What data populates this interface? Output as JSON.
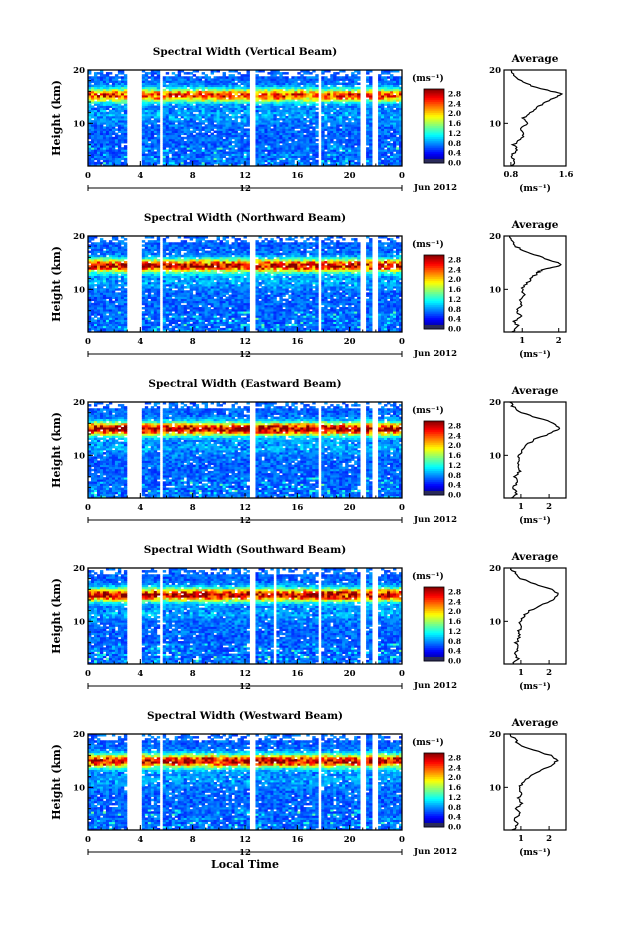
{
  "chart_data": [
    {
      "type": "heatmap",
      "title": "Spectral Width (Vertical Beam)",
      "ylabel": "Height (km)",
      "ylim": [
        2,
        20
      ],
      "y_ticks": [
        "20",
        "10"
      ],
      "x_ticks": [
        "0",
        "4",
        "8",
        "12",
        "16",
        "20",
        "0"
      ],
      "xlim": [
        0,
        24
      ],
      "date_label": "12",
      "date_suffix": "Jun 2012",
      "colorbar": {
        "unit": "(ms⁻¹)",
        "labels": [
          "2.8",
          "2.4",
          "2.0",
          "1.6",
          "1.2",
          "0.8",
          "0.4",
          "0.0"
        ],
        "range": [
          0,
          2.8
        ]
      },
      "gaps": [
        [
          3.0,
          4.0
        ],
        [
          5.5,
          5.8
        ],
        [
          12.4,
          12.8
        ],
        [
          17.6,
          17.9
        ],
        [
          20.9,
          21.2
        ],
        [
          21.8,
          22.1
        ]
      ],
      "core_height": 15.3,
      "core_level": 2.2,
      "average": {
        "title": "Average",
        "xlabel": "(ms⁻¹)",
        "xlim": [
          0.7,
          1.6
        ],
        "x_ticks": [
          {
            "v": 0.8,
            "label": "0.8"
          },
          {
            "v": 1.6,
            "label": "1.6"
          }
        ],
        "y_ticks": [
          "20",
          "10"
        ],
        "profile": [
          {
            "h": 2,
            "w": 0.8
          },
          {
            "h": 3,
            "w": 0.86
          },
          {
            "h": 4,
            "w": 0.81
          },
          {
            "h": 5,
            "w": 0.9
          },
          {
            "h": 6,
            "w": 0.84
          },
          {
            "h": 7,
            "w": 0.93
          },
          {
            "h": 8,
            "w": 1.0
          },
          {
            "h": 9,
            "w": 0.95
          },
          {
            "h": 10,
            "w": 1.05
          },
          {
            "h": 11,
            "w": 0.98
          },
          {
            "h": 12,
            "w": 1.08
          },
          {
            "h": 13,
            "w": 1.18
          },
          {
            "h": 14,
            "w": 1.3
          },
          {
            "h": 15,
            "w": 1.48
          },
          {
            "h": 15.5,
            "w": 1.55
          },
          {
            "h": 16,
            "w": 1.4
          },
          {
            "h": 17,
            "w": 1.1
          },
          {
            "h": 18,
            "w": 0.95
          },
          {
            "h": 19,
            "w": 0.86
          },
          {
            "h": 20,
            "w": 0.8
          }
        ]
      }
    },
    {
      "type": "heatmap",
      "title": "Spectral Width (Northward Beam)",
      "ylabel": "Height (km)",
      "ylim": [
        2,
        20
      ],
      "y_ticks": [
        "20",
        "10"
      ],
      "x_ticks": [
        "0",
        "4",
        "8",
        "12",
        "16",
        "20",
        "0"
      ],
      "xlim": [
        0,
        24
      ],
      "date_label": "12",
      "date_suffix": "Jun 2012",
      "colorbar": {
        "unit": "(ms⁻¹)",
        "labels": [
          "2.8",
          "2.4",
          "2.0",
          "1.6",
          "1.2",
          "0.8",
          "0.4",
          "0.0"
        ],
        "range": [
          0,
          2.8
        ]
      },
      "gaps": [
        [
          3.0,
          4.0
        ],
        [
          5.5,
          5.8
        ],
        [
          12.4,
          12.8
        ],
        [
          17.6,
          17.9
        ],
        [
          20.9,
          21.2
        ],
        [
          21.8,
          22.1
        ]
      ],
      "core_height": 14.5,
      "core_level": 2.5,
      "average": {
        "title": "Average",
        "xlabel": "(ms⁻¹)",
        "xlim": [
          0.5,
          2.2
        ],
        "x_ticks": [
          {
            "v": 1.0,
            "label": "1"
          },
          {
            "v": 2.0,
            "label": "2"
          }
        ],
        "y_ticks": [
          "20",
          "10"
        ],
        "profile": [
          {
            "h": 2,
            "w": 0.75
          },
          {
            "h": 3,
            "w": 0.9
          },
          {
            "h": 4,
            "w": 0.78
          },
          {
            "h": 5,
            "w": 0.95
          },
          {
            "h": 6,
            "w": 0.85
          },
          {
            "h": 7,
            "w": 1.0
          },
          {
            "h": 8,
            "w": 0.92
          },
          {
            "h": 9,
            "w": 1.05
          },
          {
            "h": 10,
            "w": 0.98
          },
          {
            "h": 11,
            "w": 1.1
          },
          {
            "h": 12,
            "w": 1.25
          },
          {
            "h": 13,
            "w": 1.4
          },
          {
            "h": 13.5,
            "w": 1.5
          },
          {
            "h": 14,
            "w": 1.75
          },
          {
            "h": 14.5,
            "w": 2.05
          },
          {
            "h": 15,
            "w": 1.95
          },
          {
            "h": 16,
            "w": 1.55
          },
          {
            "h": 17,
            "w": 1.1
          },
          {
            "h": 18,
            "w": 0.85
          },
          {
            "h": 19,
            "w": 0.72
          },
          {
            "h": 20,
            "w": 0.65
          }
        ]
      }
    },
    {
      "type": "heatmap",
      "title": "Spectral Width (Eastward Beam)",
      "ylabel": "Height (km)",
      "ylim": [
        2,
        20
      ],
      "y_ticks": [
        "20",
        "10"
      ],
      "x_ticks": [
        "0",
        "4",
        "8",
        "12",
        "16",
        "20",
        "0"
      ],
      "xlim": [
        0,
        24
      ],
      "date_label": "12",
      "date_suffix": "Jun 2012",
      "colorbar": {
        "unit": "(ms⁻¹)",
        "labels": [
          "2.8",
          "2.4",
          "2.0",
          "1.6",
          "1.2",
          "0.8",
          "0.4",
          "0.0"
        ],
        "range": [
          0,
          2.8
        ]
      },
      "gaps": [
        [
          3.0,
          4.0
        ],
        [
          5.5,
          5.8
        ],
        [
          12.4,
          12.8
        ],
        [
          17.6,
          17.9
        ],
        [
          20.9,
          21.2
        ],
        [
          21.8,
          22.1
        ]
      ],
      "core_height": 15.0,
      "core_level": 2.7,
      "average": {
        "title": "Average",
        "xlabel": "(ms⁻¹)",
        "xlim": [
          0.4,
          2.6
        ],
        "x_ticks": [
          {
            "v": 1.0,
            "label": "1"
          },
          {
            "v": 2.0,
            "label": "2"
          }
        ],
        "y_ticks": [
          "20",
          "10"
        ],
        "profile": [
          {
            "h": 2,
            "w": 0.7
          },
          {
            "h": 3,
            "w": 0.85
          },
          {
            "h": 4,
            "w": 0.75
          },
          {
            "h": 5,
            "w": 0.9
          },
          {
            "h": 6,
            "w": 0.8
          },
          {
            "h": 7,
            "w": 0.95
          },
          {
            "h": 8,
            "w": 0.88
          },
          {
            "h": 9,
            "w": 0.98
          },
          {
            "h": 10,
            "w": 0.92
          },
          {
            "h": 11,
            "w": 1.05
          },
          {
            "h": 12,
            "w": 1.2
          },
          {
            "h": 13,
            "w": 1.5
          },
          {
            "h": 14,
            "w": 2.0
          },
          {
            "h": 15,
            "w": 2.4
          },
          {
            "h": 16,
            "w": 2.2
          },
          {
            "h": 17,
            "w": 1.6
          },
          {
            "h": 18,
            "w": 1.0
          },
          {
            "h": 19,
            "w": 0.75
          },
          {
            "h": 20,
            "w": 0.6
          }
        ]
      }
    },
    {
      "type": "heatmap",
      "title": "Spectral Width (Southward Beam)",
      "ylabel": "Height (km)",
      "ylim": [
        2,
        20
      ],
      "y_ticks": [
        "20",
        "10"
      ],
      "x_ticks": [
        "0",
        "4",
        "8",
        "12",
        "16",
        "20",
        "0"
      ],
      "xlim": [
        0,
        24
      ],
      "date_label": "12",
      "date_suffix": "Jun 2012",
      "colorbar": {
        "unit": "(ms⁻¹)",
        "labels": [
          "2.8",
          "2.4",
          "2.0",
          "1.6",
          "1.2",
          "0.8",
          "0.4",
          "0.0"
        ],
        "range": [
          0,
          2.8
        ]
      },
      "gaps": [
        [
          3.0,
          4.0
        ],
        [
          5.5,
          5.8
        ],
        [
          12.4,
          12.8
        ],
        [
          14.2,
          14.5
        ],
        [
          17.6,
          17.9
        ],
        [
          20.9,
          21.2
        ],
        [
          21.8,
          22.1
        ]
      ],
      "core_height": 15.0,
      "core_level": 2.6,
      "average": {
        "title": "Average",
        "xlabel": "(ms⁻¹)",
        "xlim": [
          0.4,
          2.6
        ],
        "x_ticks": [
          {
            "v": 1.0,
            "label": "1"
          },
          {
            "v": 2.0,
            "label": "2"
          }
        ],
        "y_ticks": [
          "20",
          "10"
        ],
        "profile": [
          {
            "h": 2,
            "w": 0.7
          },
          {
            "h": 3,
            "w": 0.88
          },
          {
            "h": 4,
            "w": 0.75
          },
          {
            "h": 5,
            "w": 0.92
          },
          {
            "h": 6,
            "w": 0.82
          },
          {
            "h": 7,
            "w": 0.97
          },
          {
            "h": 8,
            "w": 0.9
          },
          {
            "h": 9,
            "w": 1.0
          },
          {
            "h": 10,
            "w": 0.95
          },
          {
            "h": 11,
            "w": 1.1
          },
          {
            "h": 12,
            "w": 1.3
          },
          {
            "h": 13,
            "w": 1.7
          },
          {
            "h": 14,
            "w": 2.1
          },
          {
            "h": 15,
            "w": 2.35
          },
          {
            "h": 16,
            "w": 2.1
          },
          {
            "h": 17,
            "w": 1.5
          },
          {
            "h": 18,
            "w": 1.0
          },
          {
            "h": 19,
            "w": 0.8
          },
          {
            "h": 20,
            "w": 0.65
          }
        ]
      }
    },
    {
      "type": "heatmap",
      "title": "Spectral Width (Westward Beam)",
      "ylabel": "Height (km)",
      "ylim": [
        2,
        20
      ],
      "y_ticks": [
        "20",
        "10"
      ],
      "x_ticks": [
        "0",
        "4",
        "8",
        "12",
        "16",
        "20",
        "0"
      ],
      "xlim": [
        0,
        24
      ],
      "date_label": "12",
      "date_suffix": "Jun 2012",
      "xlabel": "Local Time",
      "colorbar": {
        "unit": "(ms⁻¹)",
        "labels": [
          "2.8",
          "2.4",
          "2.0",
          "1.6",
          "1.2",
          "0.8",
          "0.4",
          "0.0"
        ],
        "range": [
          0,
          2.8
        ]
      },
      "gaps": [
        [
          3.0,
          4.0
        ],
        [
          5.5,
          5.8
        ],
        [
          12.4,
          12.8
        ],
        [
          17.6,
          17.9
        ],
        [
          20.9,
          21.2
        ],
        [
          21.8,
          22.1
        ]
      ],
      "core_height": 15.0,
      "core_level": 2.6,
      "average": {
        "title": "Average",
        "xlabel": "(ms⁻¹)",
        "xlim": [
          0.4,
          2.6
        ],
        "x_ticks": [
          {
            "v": 1.0,
            "label": "1"
          },
          {
            "v": 2.0,
            "label": "2"
          }
        ],
        "y_ticks": [
          "20",
          "10"
        ],
        "profile": [
          {
            "h": 2,
            "w": 0.72
          },
          {
            "h": 3,
            "w": 0.9
          },
          {
            "h": 4,
            "w": 0.78
          },
          {
            "h": 5,
            "w": 0.95
          },
          {
            "h": 6,
            "w": 0.85
          },
          {
            "h": 7,
            "w": 1.0
          },
          {
            "h": 8,
            "w": 0.92
          },
          {
            "h": 9,
            "w": 1.02
          },
          {
            "h": 10,
            "w": 0.96
          },
          {
            "h": 11,
            "w": 1.1
          },
          {
            "h": 12,
            "w": 1.3
          },
          {
            "h": 13,
            "w": 1.65
          },
          {
            "h": 14,
            "w": 2.05
          },
          {
            "h": 15,
            "w": 2.3
          },
          {
            "h": 16,
            "w": 2.05
          },
          {
            "h": 17,
            "w": 1.45
          },
          {
            "h": 18,
            "w": 0.95
          },
          {
            "h": 19,
            "w": 0.78
          },
          {
            "h": 20,
            "w": 0.62
          }
        ]
      }
    }
  ]
}
